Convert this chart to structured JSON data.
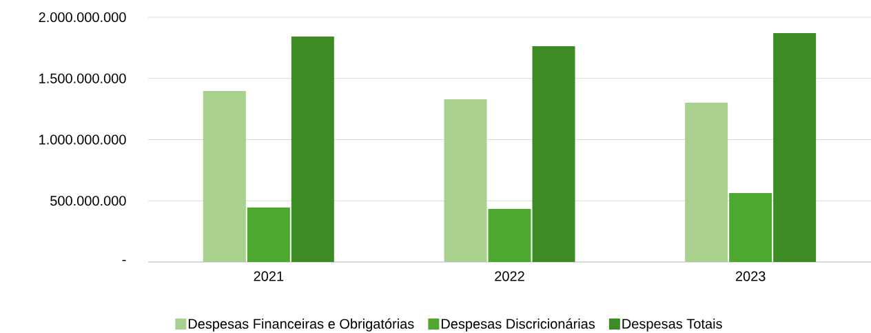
{
  "chart_data": {
    "type": "bar",
    "categories": [
      "2021",
      "2022",
      "2023"
    ],
    "series": [
      {
        "name": "Despesas Financeiras e Obrigatórias",
        "color": "#a9d08e",
        "values": [
          1397000000,
          1330000000,
          1301000000
        ]
      },
      {
        "name": "Despesas Discricionárias",
        "color": "#4ea72e",
        "values": [
          445000000,
          434000000,
          563000000
        ]
      },
      {
        "name": "Despesas Totais",
        "color": "#3d8b25",
        "values": [
          1842000000,
          1763000000,
          1870000000
        ]
      }
    ],
    "ylim": [
      0,
      2000000000
    ],
    "yticks": [
      {
        "value": 0,
        "label": "-"
      },
      {
        "value": 500000000,
        "label": "500.000.000"
      },
      {
        "value": 1000000000,
        "label": "1.000.000.000"
      },
      {
        "value": 1500000000,
        "label": "1.500.000.000"
      },
      {
        "value": 2000000000,
        "label": "2.000.000.000"
      }
    ],
    "grid": "y",
    "legend": "bottom"
  }
}
